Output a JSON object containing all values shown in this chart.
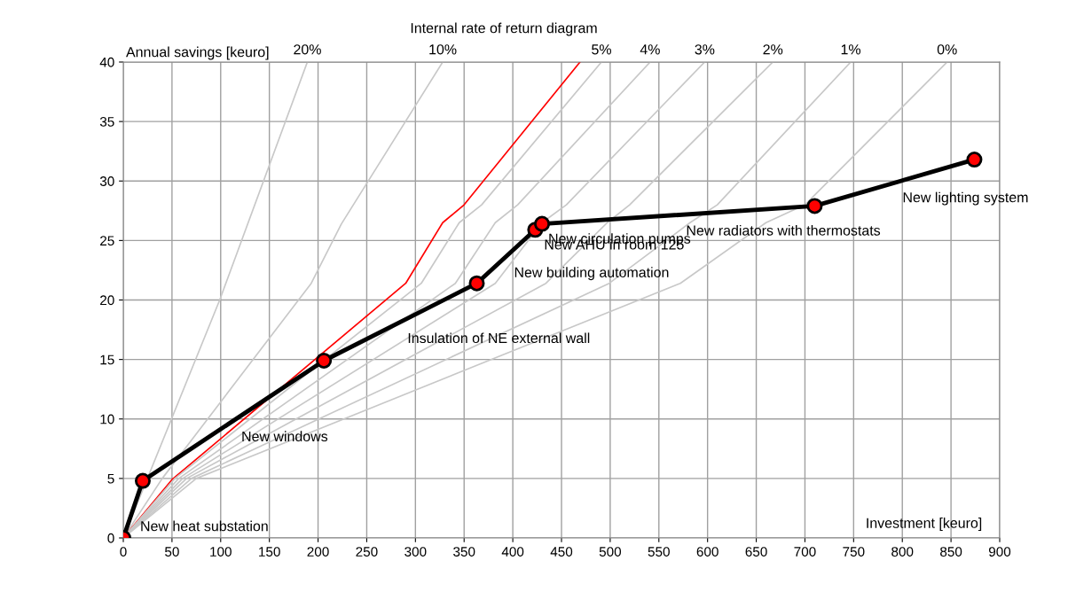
{
  "chart_data": {
    "type": "line",
    "title": "Internal rate of return diagram",
    "xlabel": "Investment [keuro]",
    "ylabel": "Annual savings [keuro]",
    "xlim": [
      0,
      900
    ],
    "ylim": [
      0,
      40
    ],
    "xticks": [
      0,
      50,
      100,
      150,
      200,
      250,
      300,
      350,
      400,
      450,
      500,
      550,
      600,
      650,
      700,
      750,
      800,
      850,
      900
    ],
    "yticks": [
      0,
      5,
      10,
      15,
      20,
      25,
      30,
      35,
      40
    ],
    "grid": true,
    "series": [
      {
        "name": "20%",
        "color": "#c8c8c8",
        "x": [
          0,
          99,
          189
        ],
        "values": [
          0,
          20,
          40
        ]
      },
      {
        "name": "10%",
        "color": "#c8c8c8",
        "x": [
          0,
          40,
          193,
          224,
          328
        ],
        "values": [
          0,
          5,
          21.4,
          26.4,
          40
        ]
      },
      {
        "color": "#ff0000",
        "x": [
          0,
          50,
          290,
          328,
          350,
          469
        ],
        "values": [
          0,
          4.9,
          21.4,
          26.5,
          28,
          40
        ]
      },
      {
        "name": "5%",
        "color": "#c8c8c8",
        "x": [
          0,
          53,
          306,
          345,
          368,
          491
        ],
        "values": [
          0,
          5,
          21.4,
          26.5,
          28,
          40
        ]
      },
      {
        "name": "4%",
        "color": "#c8c8c8",
        "x": [
          0,
          57,
          341,
          382,
          405,
          541
        ],
        "values": [
          0,
          5,
          21.4,
          26.5,
          28,
          40
        ]
      },
      {
        "name": "3%",
        "color": "#c8c8c8",
        "x": [
          0,
          61,
          382,
          430,
          455,
          597
        ],
        "values": [
          0,
          5,
          21.4,
          26.5,
          28,
          40
        ]
      },
      {
        "name": "2%",
        "color": "#c8c8c8",
        "x": [
          0,
          65,
          434,
          497,
          520,
          667
        ],
        "values": [
          0,
          5,
          21.4,
          26.5,
          28,
          40
        ]
      },
      {
        "name": "1%",
        "color": "#c8c8c8",
        "x": [
          0,
          70,
          499,
          582,
          610,
          747
        ],
        "values": [
          0,
          5,
          21.4,
          26.5,
          28,
          40
        ]
      },
      {
        "name": "0%",
        "color": "#c8c8c8",
        "x": [
          0,
          75,
          572,
          660,
          700,
          846
        ],
        "values": [
          0,
          5,
          21.4,
          26.5,
          28,
          40
        ]
      },
      {
        "color": "#000000",
        "marker": "circle",
        "colors": [
          "#ff0000",
          "#ff0000",
          "#ff0000",
          "#ff0000",
          "#ff0000",
          "#ff0000",
          "#ff0000",
          "#ff0000"
        ],
        "x": [
          0,
          20,
          206,
          363,
          423,
          430,
          710,
          874
        ],
        "values": [
          0,
          4.8,
          14.9,
          21.4,
          25.9,
          26.4,
          27.9,
          31.8
        ]
      }
    ],
    "annotations": [
      {
        "text": "New heat substation",
        "x": 0,
        "y": 0
      },
      {
        "text": "New windows",
        "x": 113,
        "y": 9.85
      },
      {
        "text": "Insulation of NE external wall",
        "x": 284.5,
        "y": 18.15
      },
      {
        "text": "New building automation",
        "x": 363,
        "y": 21.4
      },
      {
        "text": "New AHU in room 125",
        "x": 423,
        "y": 25.9
      },
      {
        "text": "New circulation pumps",
        "x": 430,
        "y": 26.4
      },
      {
        "text": "New radiators with thermostats",
        "x": 710,
        "y": 27.9
      },
      {
        "text": "New lighting system",
        "x": 874,
        "y": 31.8
      }
    ]
  }
}
